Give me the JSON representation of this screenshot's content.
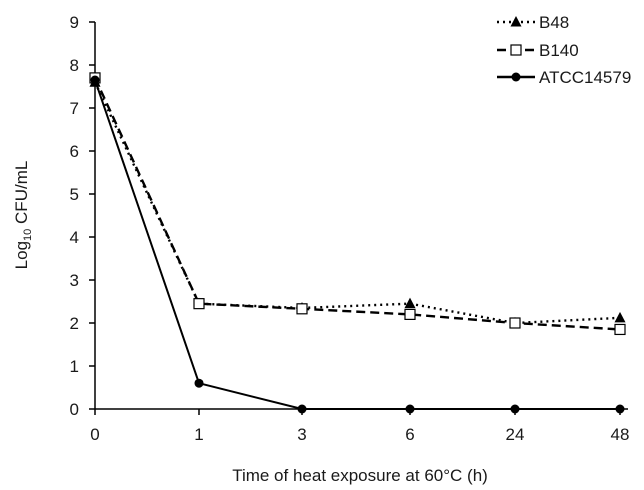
{
  "chart_data": {
    "type": "line",
    "title": "",
    "xlabel": "Time of heat exposure at 60°C (h)",
    "ylabel_main": "Log",
    "ylabel_sub": "10",
    "ylabel_rest": " CFU/mL",
    "categories": [
      "0",
      "1",
      "3",
      "6",
      "24",
      "48"
    ],
    "ylim": [
      0,
      9
    ],
    "yticks": [
      "0",
      "1",
      "2",
      "3",
      "4",
      "5",
      "6",
      "7",
      "8",
      "9"
    ],
    "grid": false,
    "legend_position": "top-right",
    "series": [
      {
        "name": "B48",
        "values": [
          7.6,
          2.45,
          2.35,
          2.45,
          2.0,
          2.12
        ],
        "line_style": "dotted",
        "marker": "filled-triangle",
        "color": "#000000"
      },
      {
        "name": "B140",
        "values": [
          7.7,
          2.45,
          2.33,
          2.2,
          2.0,
          1.85
        ],
        "line_style": "dashed",
        "marker": "open-square",
        "color": "#000000"
      },
      {
        "name": "ATCC14579",
        "values": [
          7.65,
          0.6,
          0.0,
          0.0,
          0.0,
          0.0
        ],
        "line_style": "solid",
        "marker": "filled-circle",
        "color": "#000000"
      }
    ]
  }
}
